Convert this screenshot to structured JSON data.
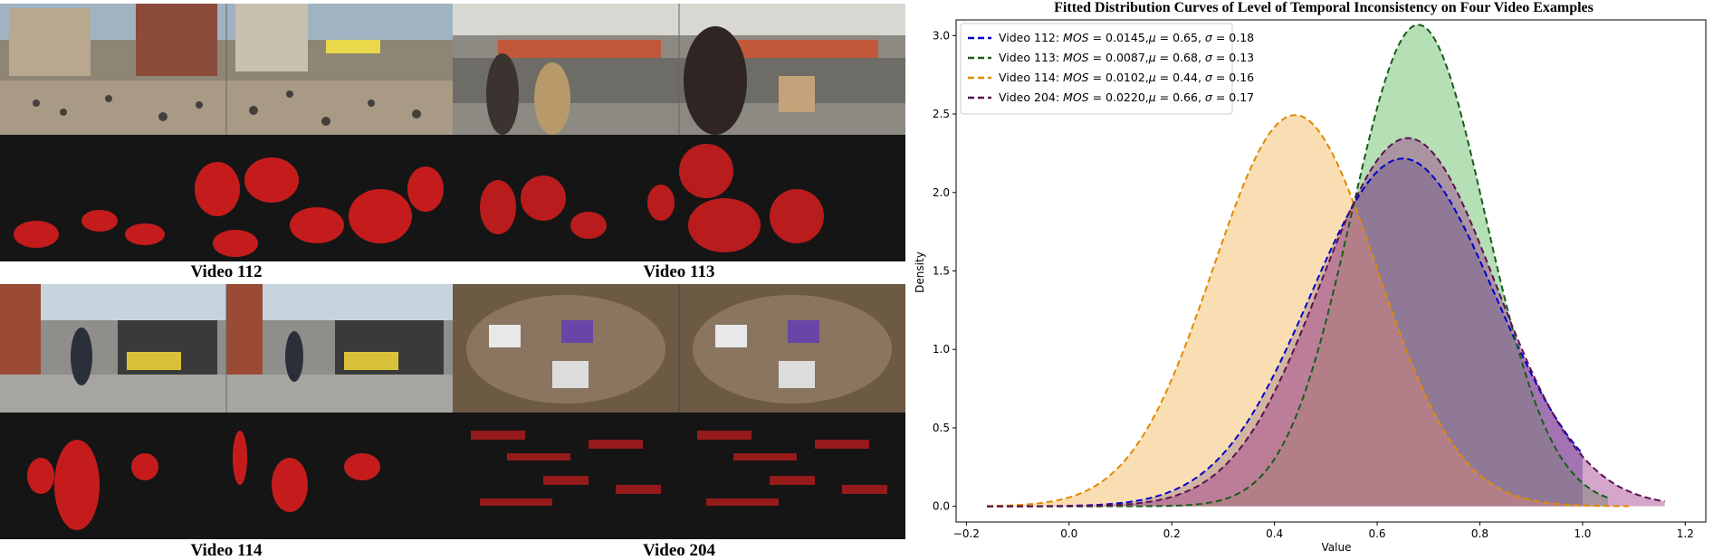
{
  "figure": {
    "videos": [
      {
        "id": "v112",
        "caption": "Video 112",
        "scene": "crowded-city-square",
        "sky": "#9fb3c2",
        "ground": "#a08d78",
        "accent": "#c3b39f"
      },
      {
        "id": "v113",
        "caption": "Video 113",
        "scene": "station-entrance",
        "sky": "#b7b8b1",
        "ground": "#8c8a82",
        "accent": "#c2583b"
      },
      {
        "id": "v114",
        "caption": "Video 114",
        "scene": "shopping-arcade",
        "sky": "#c6d5dd",
        "ground": "#8f8e8b",
        "accent": "#d9c23a"
      },
      {
        "id": "v204",
        "caption": "Video 204",
        "scene": "meeting-table-top-view",
        "sky": "#6d5a45",
        "ground": "#8a7560",
        "accent": "#6a45a8"
      }
    ],
    "heatmap_bg": "#151515",
    "heatmap_color": "#ff1f1f"
  },
  "chart_data": {
    "type": "area",
    "title": "Fitted Distribution Curves of Level of Temporal Inconsistency on Four Video Examples",
    "xlabel": "Value",
    "ylabel": "Density",
    "xlim": [
      -0.22,
      1.24
    ],
    "ylim": [
      -0.1,
      3.1
    ],
    "xticks": [
      -0.2,
      0.0,
      0.2,
      0.4,
      0.6,
      0.8,
      1.0,
      1.2
    ],
    "xtick_labels": [
      "−0.2",
      "0.0",
      "0.2",
      "0.4",
      "0.6",
      "0.8",
      "1.0",
      "1.2"
    ],
    "yticks": [
      0.0,
      0.5,
      1.0,
      1.5,
      2.0,
      2.5,
      3.0
    ],
    "ytick_labels": [
      "0.0",
      "0.5",
      "1.0",
      "1.5",
      "2.0",
      "2.5",
      "3.0"
    ],
    "legend_position": "upper-left",
    "grid": false,
    "series": [
      {
        "name": "Video 112",
        "mos": "0.0145",
        "mu": 0.65,
        "sigma": 0.18,
        "mu_text": "0.65",
        "sigma_text": "0.18",
        "x_range": [
          -0.16,
          1.0
        ],
        "line_color": "#0000cc",
        "fill_color": "#5a5ab4",
        "fill_opacity": 0.55,
        "fill_to": 1.0
      },
      {
        "name": "Video 113",
        "mos": "0.0087",
        "mu": 0.68,
        "sigma": 0.13,
        "mu_text": "0.68",
        "sigma_text": "0.13",
        "x_range": [
          -0.16,
          1.05
        ],
        "line_color": "#1a5c1a",
        "fill_color": "#5cb85c",
        "fill_opacity": 0.45,
        "fill_to": 1.05
      },
      {
        "name": "Video 114",
        "mos": "0.0102",
        "mu": 0.44,
        "sigma": 0.16,
        "mu_text": "0.44",
        "sigma_text": "0.16",
        "x_range": [
          -0.16,
          1.09
        ],
        "line_color": "#e08a00",
        "fill_color": "#f6c275",
        "fill_opacity": 0.55,
        "fill_to": 1.09
      },
      {
        "name": "Video 204",
        "mos": "0.0220",
        "mu": 0.66,
        "sigma": 0.17,
        "mu_text": "0.66",
        "sigma_text": "0.17",
        "x_range": [
          -0.16,
          1.16
        ],
        "line_color": "#5a1050",
        "fill_color": "#a03a8c",
        "fill_opacity": 0.45,
        "fill_to": 1.16
      }
    ]
  }
}
